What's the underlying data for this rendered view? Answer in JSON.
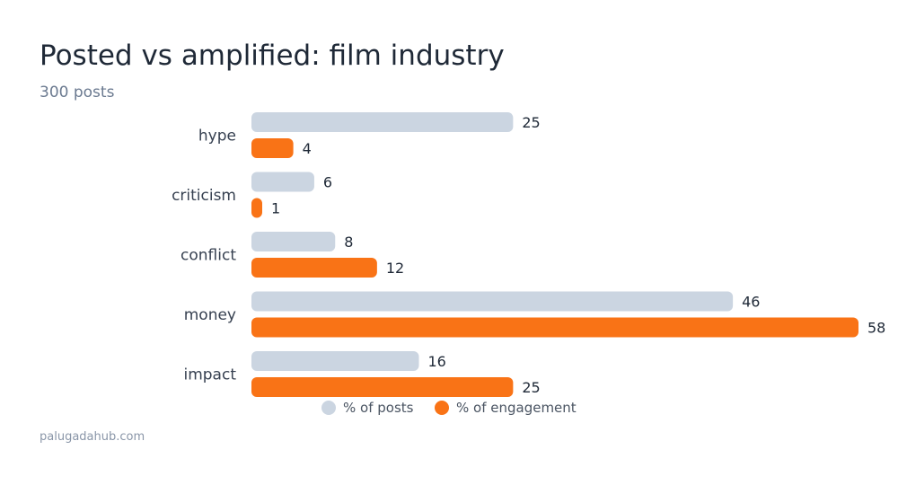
{
  "chart_data": {
    "type": "bar",
    "orientation": "horizontal",
    "title": "Posted vs amplified: film industry",
    "subtitle": "300 posts",
    "categories": [
      "hype",
      "criticism",
      "conflict",
      "money",
      "impact"
    ],
    "series": [
      {
        "name": "% of posts",
        "values": [
          25,
          6,
          8,
          46,
          16
        ],
        "color": "#cbd5e1"
      },
      {
        "name": "% of engagement",
        "values": [
          4,
          1,
          12,
          58,
          25
        ],
        "color": "#f97316"
      }
    ],
    "xlim": [
      0,
      58
    ],
    "grid": false,
    "legend_position": "bottom"
  },
  "footer": {
    "source": "palugadahub.com"
  }
}
